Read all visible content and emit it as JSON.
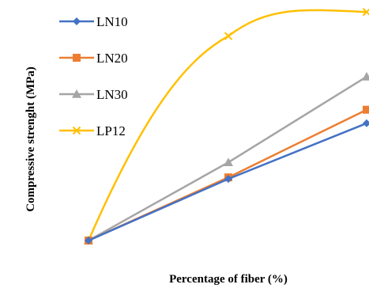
{
  "chart_data": {
    "type": "line",
    "xlabel": "Percentage of fiber (%)",
    "ylabel": "Compressive strenght (MPa)",
    "x": [
      0,
      1,
      2
    ],
    "series": [
      {
        "name": "LN10",
        "values": [
          0,
          0.41,
          0.78
        ],
        "color": "#4472C4",
        "marker": "diamond",
        "smooth": false
      },
      {
        "name": "LN20",
        "values": [
          0,
          0.42,
          0.87
        ],
        "color": "#ED7D31",
        "marker": "square",
        "smooth": false
      },
      {
        "name": "LN30",
        "values": [
          0,
          0.52,
          1.09
        ],
        "color": "#A5A5A5",
        "marker": "triangle",
        "smooth": false
      },
      {
        "name": "LP12",
        "values": [
          0,
          1.36,
          1.52
        ],
        "color": "#FFC000",
        "marker": "x",
        "smooth": true
      }
    ],
    "grid": false,
    "legend": "top-left"
  }
}
